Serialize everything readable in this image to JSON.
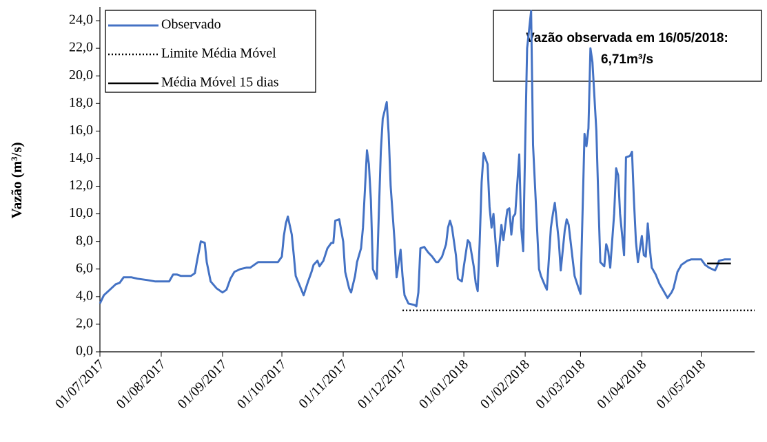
{
  "chart_data": {
    "type": "line",
    "y_label": "Vazão (m³/s)",
    "annotation": [
      "Vazão observada em 16/05/2018:",
      "6,71m³/s"
    ],
    "annotation_color": "#ff0000",
    "xlim": [
      "01/07/2017",
      "28/05/2018"
    ],
    "xticks": [
      "01/07/2017",
      "01/08/2017",
      "01/09/2017",
      "01/10/2017",
      "01/11/2017",
      "01/12/2017",
      "01/01/2018",
      "01/02/2018",
      "01/03/2018",
      "01/04/2018",
      "01/05/2018"
    ],
    "ylim": [
      0,
      25
    ],
    "yticks": [
      {
        "value": 0,
        "label": "0,0"
      },
      {
        "value": 2,
        "label": "2,0"
      },
      {
        "value": 4,
        "label": "4,0"
      },
      {
        "value": 6,
        "label": "6,0"
      },
      {
        "value": 8,
        "label": "8,0"
      },
      {
        "value": 10,
        "label": "10,0"
      },
      {
        "value": 12,
        "label": "12,0"
      },
      {
        "value": 14,
        "label": "14,0"
      },
      {
        "value": 16,
        "label": "16,0"
      },
      {
        "value": 18,
        "label": "18,0"
      },
      {
        "value": 20,
        "label": "20,0"
      },
      {
        "value": 22,
        "label": "22,0"
      },
      {
        "value": 24,
        "label": "24,0"
      }
    ],
    "legend": "upper left",
    "series": [
      {
        "name": "Observado",
        "color": "#4472c4",
        "style": "solid",
        "x": [
          "01/07/2017",
          "03/07/2017",
          "06/07/2017",
          "09/07/2017",
          "11/07/2017",
          "13/07/2017",
          "17/07/2017",
          "20/07/2017",
          "25/07/2017",
          "29/07/2017",
          "05/08/2017",
          "07/08/2017",
          "09/08/2017",
          "11/08/2017",
          "16/08/2017",
          "18/08/2017",
          "19/08/2017",
          "21/08/2017",
          "23/08/2017",
          "24/08/2017",
          "26/08/2017",
          "29/08/2017",
          "01/09/2017",
          "03/09/2017",
          "05/09/2017",
          "07/09/2017",
          "10/09/2017",
          "13/09/2017",
          "15/09/2017",
          "17/09/2017",
          "19/09/2017",
          "23/09/2017",
          "29/09/2017",
          "01/10/2017",
          "02/10/2017",
          "03/10/2017",
          "04/10/2017",
          "06/10/2017",
          "07/10/2017",
          "08/10/2017",
          "10/10/2017",
          "12/10/2017",
          "14/10/2017",
          "16/10/2017",
          "17/10/2017",
          "19/10/2017",
          "20/10/2017",
          "22/10/2017",
          "24/10/2017",
          "26/10/2017",
          "27/10/2017",
          "28/10/2017",
          "30/10/2017",
          "01/11/2017",
          "02/11/2017",
          "04/11/2017",
          "05/11/2017",
          "07/11/2017",
          "08/11/2017",
          "10/11/2017",
          "11/11/2017",
          "13/11/2017",
          "14/11/2017",
          "15/11/2017",
          "16/11/2017",
          "18/11/2017",
          "19/11/2017",
          "20/11/2017",
          "21/11/2017",
          "23/11/2017",
          "24/11/2017",
          "25/11/2017",
          "27/11/2017",
          "28/11/2017",
          "30/11/2017",
          "01/12/2017",
          "02/12/2017",
          "04/12/2017",
          "07/12/2017",
          "08/12/2017",
          "09/12/2017",
          "10/12/2017",
          "12/12/2017",
          "14/12/2017",
          "16/12/2017",
          "18/12/2017",
          "19/12/2017",
          "21/12/2017",
          "23/12/2017",
          "24/12/2017",
          "25/12/2017",
          "26/12/2017",
          "28/12/2017",
          "29/12/2017",
          "31/12/2017",
          "01/01/2018",
          "03/01/2018",
          "04/01/2018",
          "06/01/2018",
          "07/01/2018",
          "08/01/2018",
          "09/01/2018",
          "10/01/2018",
          "11/01/2018",
          "13/01/2018",
          "14/01/2018",
          "15/01/2018",
          "16/01/2018",
          "17/01/2018",
          "18/01/2018",
          "20/01/2018",
          "21/01/2018",
          "23/01/2018",
          "24/01/2018",
          "25/01/2018",
          "26/01/2018",
          "27/01/2018",
          "29/01/2018",
          "30/01/2018",
          "31/01/2018",
          "01/02/2018",
          "02/02/2018",
          "04/02/2018",
          "05/02/2018",
          "07/02/2018",
          "08/02/2018",
          "09/02/2018",
          "11/02/2018",
          "12/02/2018",
          "14/02/2018",
          "15/02/2018",
          "16/02/2018",
          "18/02/2018",
          "19/02/2018",
          "21/02/2018",
          "22/02/2018",
          "23/02/2018",
          "25/02/2018",
          "26/02/2018",
          "28/02/2018",
          "01/03/2018",
          "02/03/2018",
          "03/03/2018",
          "04/03/2018",
          "05/03/2018",
          "06/03/2018",
          "07/03/2018",
          "09/03/2018",
          "10/03/2018",
          "11/03/2018",
          "13/03/2018",
          "14/03/2018",
          "15/03/2018",
          "16/03/2018",
          "18/03/2018",
          "19/03/2018",
          "20/03/2018",
          "21/03/2018",
          "23/03/2018",
          "24/03/2018",
          "26/03/2018",
          "27/03/2018",
          "28/03/2018",
          "29/03/2018",
          "30/03/2018",
          "01/04/2018",
          "02/04/2018",
          "03/04/2018",
          "04/04/2018",
          "05/04/2018",
          "06/04/2018",
          "08/04/2018",
          "10/04/2018",
          "12/04/2018",
          "14/04/2018",
          "16/04/2018",
          "17/04/2018",
          "19/04/2018",
          "21/04/2018",
          "24/04/2018",
          "26/04/2018",
          "01/05/2018",
          "03/05/2018",
          "05/05/2018",
          "08/05/2018",
          "09/05/2018",
          "10/05/2018",
          "13/05/2018",
          "16/05/2018"
        ],
        "values": [
          3.5,
          4.1,
          4.5,
          4.9,
          5.0,
          5.4,
          5.4,
          5.3,
          5.2,
          5.1,
          5.1,
          5.6,
          5.6,
          5.5,
          5.5,
          5.7,
          6.5,
          8.0,
          7.9,
          6.5,
          5.1,
          4.6,
          4.3,
          4.5,
          5.3,
          5.8,
          6.0,
          6.1,
          6.1,
          6.3,
          6.5,
          6.5,
          6.5,
          6.9,
          8.4,
          9.3,
          9.8,
          8.5,
          7.0,
          5.5,
          4.8,
          4.1,
          5.0,
          5.8,
          6.3,
          6.6,
          6.2,
          6.6,
          7.5,
          7.9,
          7.9,
          9.5,
          9.6,
          8.0,
          5.8,
          4.6,
          4.3,
          5.5,
          6.5,
          7.5,
          9.0,
          14.6,
          13.6,
          11.0,
          6.0,
          5.3,
          10.0,
          14.5,
          16.9,
          18.1,
          15.8,
          12.0,
          8.0,
          5.4,
          7.4,
          5.5,
          4.1,
          3.5,
          3.4,
          3.3,
          4.3,
          7.5,
          7.6,
          7.2,
          6.9,
          6.5,
          6.5,
          6.9,
          7.8,
          9.0,
          9.5,
          9.0,
          7.0,
          5.3,
          5.1,
          6.2,
          8.1,
          7.9,
          6.2,
          5.0,
          4.4,
          8.0,
          12.3,
          14.4,
          13.6,
          10.5,
          9.0,
          10.0,
          8.0,
          6.2,
          9.2,
          8.1,
          10.3,
          10.4,
          8.5,
          9.8,
          10.0,
          14.3,
          9.0,
          7.3,
          15.0,
          22.0,
          24.7,
          15.0,
          9.0,
          6.0,
          5.5,
          4.8,
          4.5,
          9.0,
          10.0,
          10.8,
          8.0,
          5.9,
          8.8,
          9.6,
          9.2,
          6.7,
          5.5,
          4.6,
          4.2,
          10.0,
          15.8,
          14.9,
          16.2,
          22.0,
          21.0,
          16.0,
          11.0,
          6.5,
          6.2,
          7.8,
          7.3,
          6.1,
          10.0,
          13.3,
          12.8,
          10.0,
          7.0,
          14.1,
          14.2,
          14.5,
          11.0,
          8.0,
          6.5,
          8.4,
          7.0,
          6.9,
          9.3,
          7.5,
          6.1,
          5.6,
          4.9,
          4.4,
          3.9,
          4.3,
          4.6,
          5.8,
          6.3,
          6.6,
          6.7,
          6.7,
          6.3,
          6.1,
          5.9,
          6.2,
          6.6,
          6.7,
          6.7
        ]
      },
      {
        "name": "Limite Média Móvel",
        "color": "#000000",
        "style": "dotted",
        "x": [
          "01/12/2017",
          "28/05/2018"
        ],
        "values": [
          3.0,
          3.0
        ]
      },
      {
        "name": "Média Móvel 15 dias",
        "color": "#000000",
        "style": "solid",
        "x": [
          "04/05/2018",
          "16/05/2018"
        ],
        "values": [
          6.4,
          6.4
        ]
      }
    ]
  }
}
